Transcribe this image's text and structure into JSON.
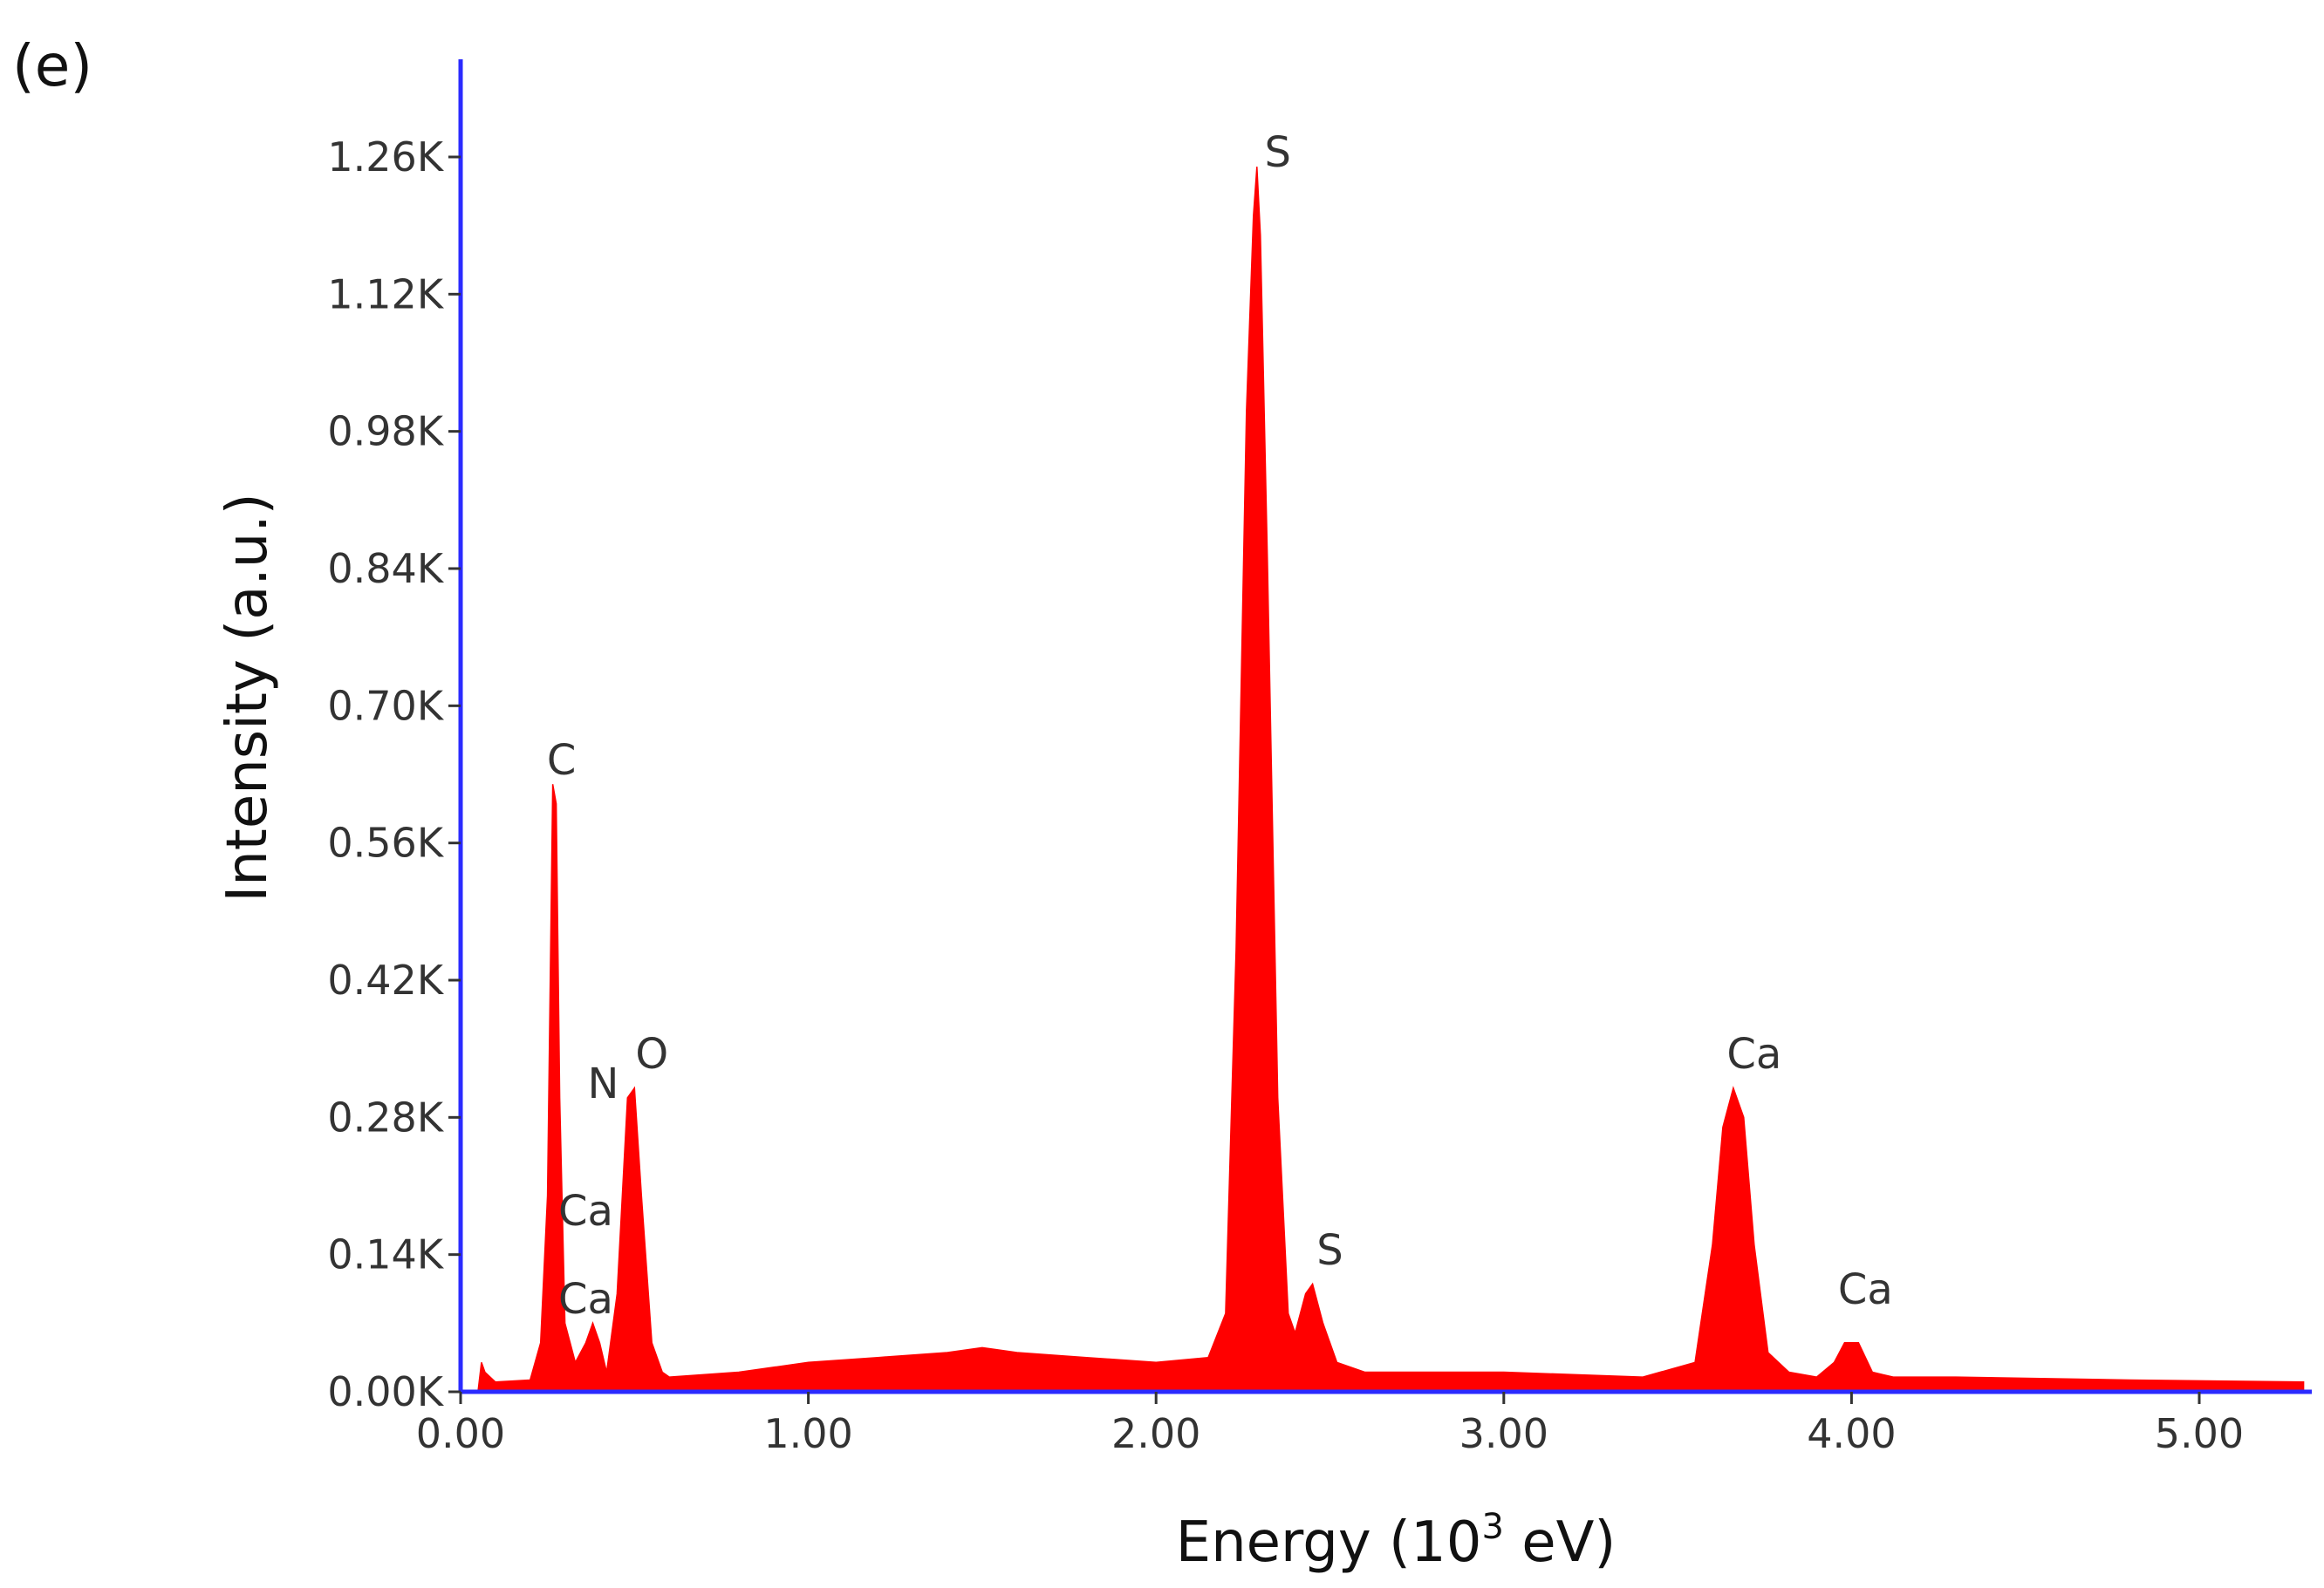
{
  "panel_label": "(e)",
  "chart_data": {
    "type": "area",
    "title": "",
    "xlabel": "Energy (10",
    "xlabel_sup": "3",
    "xlabel_suffix": " eV)",
    "ylabel": "Intensity (a.u.)",
    "xlim": [
      0.0,
      5.3
    ],
    "ylim": [
      0.0,
      1.35
    ],
    "x_ticks": [
      0.0,
      1.0,
      2.0,
      3.0,
      4.0,
      5.0
    ],
    "x_tick_labels": [
      "0.00",
      "1.00",
      "2.00",
      "3.00",
      "4.00",
      "5.00"
    ],
    "y_ticks": [
      0.0,
      0.14,
      0.28,
      0.42,
      0.56,
      0.7,
      0.84,
      0.98,
      1.12,
      1.26
    ],
    "y_tick_labels": [
      "0.00K",
      "0.14K",
      "0.28K",
      "0.42K",
      "0.56K",
      "0.70K",
      "0.84K",
      "0.98K",
      "1.12K",
      "1.26K"
    ],
    "grid": false,
    "fill_color": "#ff0000",
    "axis_color": "#2b2bff",
    "series": [
      {
        "x": [
          0.0,
          0.05,
          0.06,
          0.07,
          0.1,
          0.2,
          0.23,
          0.25,
          0.265,
          0.275,
          0.285,
          0.3,
          0.33,
          0.36,
          0.38,
          0.4,
          0.42,
          0.45,
          0.48,
          0.5,
          0.52,
          0.55,
          0.58,
          0.6,
          0.8,
          1.0,
          1.2,
          1.4,
          1.5,
          1.6,
          1.8,
          2.0,
          2.15,
          2.2,
          2.23,
          2.26,
          2.28,
          2.29,
          2.3,
          2.32,
          2.35,
          2.38,
          2.4,
          2.43,
          2.45,
          2.48,
          2.52,
          2.6,
          3.0,
          3.4,
          3.55,
          3.6,
          3.63,
          3.66,
          3.69,
          3.72,
          3.76,
          3.82,
          3.9,
          3.95,
          3.98,
          4.02,
          4.06,
          4.12,
          4.3,
          4.8,
          5.3
        ],
        "y": [
          0.0,
          0.0,
          0.03,
          0.02,
          0.01,
          0.012,
          0.05,
          0.2,
          0.62,
          0.6,
          0.3,
          0.07,
          0.03,
          0.05,
          0.07,
          0.05,
          0.02,
          0.1,
          0.3,
          0.31,
          0.2,
          0.05,
          0.02,
          0.015,
          0.02,
          0.03,
          0.035,
          0.04,
          0.045,
          0.04,
          0.035,
          0.03,
          0.035,
          0.08,
          0.45,
          1.0,
          1.2,
          1.25,
          1.18,
          0.85,
          0.3,
          0.08,
          0.06,
          0.1,
          0.11,
          0.07,
          0.03,
          0.02,
          0.02,
          0.015,
          0.03,
          0.15,
          0.27,
          0.31,
          0.28,
          0.15,
          0.04,
          0.02,
          0.015,
          0.03,
          0.05,
          0.05,
          0.02,
          0.015,
          0.015,
          0.012,
          0.01
        ]
      }
    ],
    "annotations": [
      {
        "text": "C",
        "x": 0.29,
        "y": 0.63
      },
      {
        "text": "N",
        "x": 0.41,
        "y": 0.3
      },
      {
        "text": "O",
        "x": 0.55,
        "y": 0.33
      },
      {
        "text": "Ca",
        "x": 0.36,
        "y": 0.17
      },
      {
        "text": "Ca",
        "x": 0.36,
        "y": 0.08
      },
      {
        "text": "S",
        "x": 2.35,
        "y": 1.25
      },
      {
        "text": "S",
        "x": 2.5,
        "y": 0.13
      },
      {
        "text": "Ca",
        "x": 3.72,
        "y": 0.33
      },
      {
        "text": "Ca",
        "x": 4.04,
        "y": 0.09
      }
    ]
  }
}
